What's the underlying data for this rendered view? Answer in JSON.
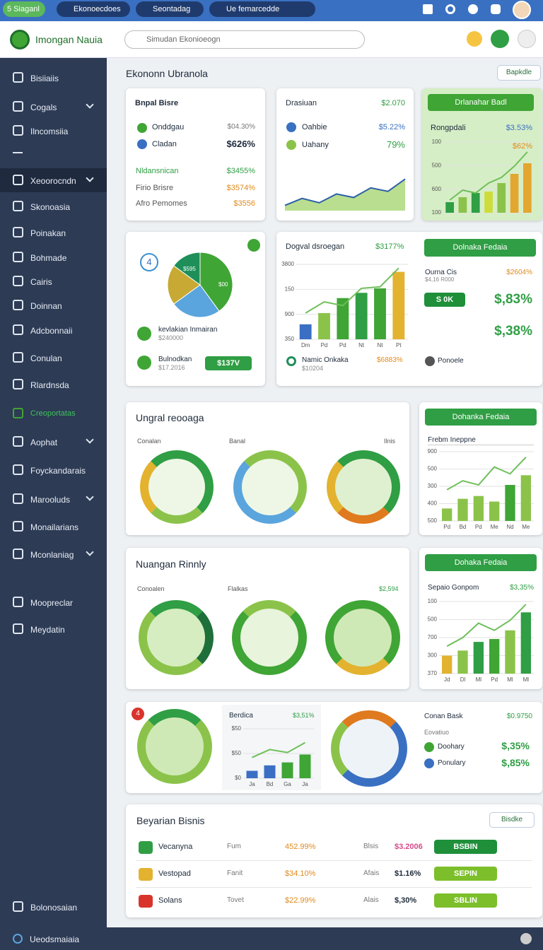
{
  "topbar": {
    "tabs": [
      "5 Siaganl",
      "Ekonoecdoes",
      "Seontadag",
      "Ue femarcedde"
    ]
  },
  "header": {
    "brand": "Imongan Nauia",
    "search": "Simudan Ekonioeogn"
  },
  "sidebar": {
    "items": [
      "Bisiiaiis",
      "Cogals",
      "Ilncomsiia",
      "Xeoorocndn",
      "Skonoasia",
      "Poinakan",
      "Bohmade",
      "Cairis",
      "Doinnan",
      "Adcbonnaii",
      "Conulan",
      "Rlardnsda",
      "Creoportatas",
      "Aophat",
      "Foyckandarais",
      "Marooluds",
      "Monailarians",
      "Mconlaniag",
      "Moopreclar",
      "Meydatin"
    ],
    "bottom": "Bolonosaian"
  },
  "footer": "Ueodsmaiaia",
  "page": {
    "title": "Ekononn Ubranola",
    "button": "Bapkdle"
  },
  "card1": {
    "title": "Bnpal Bisre",
    "rows": [
      {
        "label": "Onddgau",
        "value": "$04.30%"
      },
      {
        "label": "Cladan",
        "value": "$626%"
      },
      {
        "label": "Nldansnican",
        "value": "$3455%"
      },
      {
        "label": "Firio Brisre",
        "value": "$3574%"
      },
      {
        "label": "Afro Pemomes",
        "value": "$3556"
      }
    ]
  },
  "card2": {
    "title": "Drasiuan",
    "figure": "$2.070",
    "rows": [
      {
        "label": "Oahbie",
        "value": "$5.22%"
      },
      {
        "label": "Uahany",
        "value": "79%"
      }
    ],
    "chart": {
      "ylim": [
        0,
        100
      ],
      "line": [
        12,
        28,
        18,
        38,
        30,
        52,
        44,
        72
      ],
      "area": true
    }
  },
  "card3": {
    "title": "Drlanahar Badl",
    "label": "Rongpdali",
    "value": "$3.53%",
    "value2": "$62%",
    "chart": {
      "ylim": [
        0,
        100
      ],
      "axis": [
        "100",
        "500",
        "600",
        "100"
      ],
      "bars": [
        15,
        22,
        28,
        30,
        42,
        55,
        70
      ],
      "colors": [
        "#2f9e44",
        "#8bc34a",
        "#2f9e44",
        "#cddc39",
        "#8bc34a",
        "#e3a72f",
        "#e3a72f"
      ],
      "line": [
        18,
        32,
        28,
        42,
        50,
        66,
        86
      ]
    }
  },
  "card4": {
    "badge": "4",
    "pie": {
      "values": [
        40,
        25,
        20,
        15
      ],
      "colors": [
        "#3fa535",
        "#5aa5dd",
        "#c7a933",
        "#1f8f5a"
      ],
      "labels": [
        "$595",
        "$00"
      ]
    },
    "legend": [
      {
        "label": "kevlakian Inmairan",
        "sub": "$240000"
      },
      {
        "label": "Bulnodkan",
        "sub": "$17.2016"
      }
    ],
    "button": "$137V"
  },
  "card5": {
    "title": "Dogval dsroegan",
    "value": "$3177%",
    "chart": {
      "ylim": [
        0,
        100
      ],
      "axis": [
        "3800",
        "150",
        "900",
        "350"
      ],
      "categories": [
        "Dm",
        "Pd",
        "Pd",
        "Nt",
        "Nt",
        "Pt"
      ],
      "bars": [
        20,
        35,
        55,
        62,
        68,
        90
      ],
      "colors": [
        "#3a6fc4",
        "#8bc34a",
        "#3fa535",
        "#2f9e44",
        "#3fa535",
        "#e3b22f"
      ],
      "line": [
        35,
        50,
        45,
        68,
        70,
        95
      ]
    },
    "footer": {
      "label": "Namic Onkaka",
      "sub": "$10204",
      "value": "$6883%",
      "extra": "Ponoele"
    },
    "right": {
      "button": "Dolnaka Fedaia",
      "label": "Ourna Cis",
      "sub": "$4,16 R000",
      "value": "$2604%",
      "pill": "S 0K",
      "big1": "$,83%",
      "big2": "$,38%"
    }
  },
  "section1": {
    "title": "Ungral reooaga",
    "labels": [
      "Conalan",
      "Banal",
      "Ilnis"
    ]
  },
  "side1": {
    "button": "Dohanka Fedaia",
    "title": "Frebm Ineppne",
    "chart": {
      "ylim": [
        0,
        100
      ],
      "axis": [
        "900",
        "500",
        "300",
        "400",
        "500"
      ],
      "categories": [
        "Pd",
        "Bd",
        "Pd",
        "Me",
        "Nd",
        "Me"
      ],
      "bars": [
        18,
        32,
        36,
        28,
        52,
        66
      ],
      "colors": [
        "#8bc34a",
        "#8bc34a",
        "#8bc34a",
        "#8bc34a",
        "#3fa535",
        "#8bc34a"
      ],
      "line": [
        45,
        58,
        52,
        78,
        68,
        92
      ]
    }
  },
  "section2": {
    "title": "Nuangan Rinnly",
    "labels": [
      "Conoalen",
      "Flalkas",
      "$2,594"
    ]
  },
  "side2": {
    "button": "Dohaka Fedaia",
    "title": "Sepaio Gonpom",
    "value": "$3,35%",
    "chart": {
      "ylim": [
        0,
        100
      ],
      "axis": [
        "100",
        "500",
        "700",
        "300",
        "370"
      ],
      "categories": [
        "Jd",
        "Dl",
        "Ml",
        "Pd",
        "Ml",
        "Ml"
      ],
      "bars": [
        25,
        32,
        44,
        48,
        60,
        85
      ],
      "colors": [
        "#e3b22f",
        "#8bc34a",
        "#2f9e44",
        "#3fa535",
        "#8bc34a",
        "#2f9e44"
      ],
      "line": [
        38,
        50,
        70,
        60,
        74,
        96
      ]
    }
  },
  "row": {
    "badge": "4",
    "chart_title": "Berdica",
    "chart_value": "$3,51%",
    "chart": {
      "ylim": [
        0,
        100
      ],
      "axis": [
        "$50",
        "$50",
        "$0"
      ],
      "categories": [
        "Ja",
        "Bd",
        "Ga",
        "Ja"
      ],
      "bars": [
        15,
        26,
        32,
        48
      ],
      "colors": [
        "#3a6fc4",
        "#3a6fc4",
        "#3fa535",
        "#3fa535"
      ],
      "line": [
        42,
        58,
        52,
        72
      ]
    },
    "panel": {
      "title": "Conan Bask",
      "value": "$0.9750",
      "sub": "Eovatiuo",
      "rows": [
        {
          "label": "Doohary",
          "value": "$,35%"
        },
        {
          "label": "Ponulary",
          "value": "$,85%"
        }
      ]
    }
  },
  "table": {
    "title": "Beyarian Bisnis",
    "button": "Bisdke",
    "rows": [
      [
        "Vecanyna",
        "Fum",
        "452.99%",
        "Blsis",
        "$3.2006",
        "BSBIN"
      ],
      [
        "Vestopad",
        "Fanit",
        "$34.10%",
        "Afais",
        "$1.16%",
        "SEPIN"
      ],
      [
        "Solans",
        "Tovet",
        "$22.99%",
        "Alais",
        "$,30%",
        "SBLIN"
      ]
    ]
  }
}
